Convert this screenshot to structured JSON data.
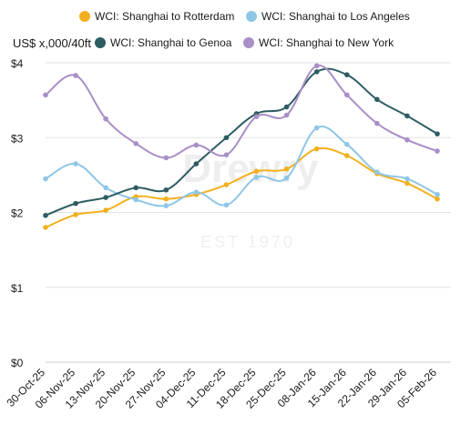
{
  "watermark": {
    "brand": "Drewry",
    "est": "EST 1970"
  },
  "chart_data": {
    "type": "line",
    "ylabel": "US$ x,000/40ft",
    "ylim": [
      0,
      4
    ],
    "yticks": [
      0,
      1,
      2,
      3,
      4
    ],
    "ytick_labels": [
      "$0",
      "$1",
      "$2",
      "$3",
      "$4"
    ],
    "grid": true,
    "legend": "top",
    "categories": [
      "30-Oct-25",
      "06-Nov-25",
      "13-Nov-25",
      "20-Nov-25",
      "27-Nov-25",
      "04-Dec-25",
      "11-Dec-25",
      "18-Dec-25",
      "25-Dec-25",
      "08-Jan-26",
      "15-Jan-26",
      "22-Jan-26",
      "29-Jan-26",
      "05-Feb-26"
    ],
    "series": [
      {
        "name": "WCI: Shanghai to Rotterdam",
        "color": "#f2b01e",
        "values": [
          1.8,
          1.97,
          2.03,
          2.21,
          2.18,
          2.24,
          2.37,
          2.55,
          2.58,
          2.85,
          2.76,
          2.52,
          2.39,
          2.18
        ]
      },
      {
        "name": "WCI: Shanghai to Los Angeles",
        "color": "#8ec6e6",
        "values": [
          2.45,
          2.65,
          2.33,
          2.17,
          2.09,
          2.27,
          2.1,
          2.47,
          2.46,
          3.13,
          2.91,
          2.54,
          2.45,
          2.24
        ]
      },
      {
        "name": "WCI: Shanghai to Genoa",
        "color": "#2d5c63",
        "values": [
          1.96,
          2.12,
          2.2,
          2.33,
          2.3,
          2.65,
          3.0,
          3.32,
          3.41,
          3.88,
          3.84,
          3.51,
          3.29,
          3.05
        ]
      },
      {
        "name": "WCI: Shanghai to New York",
        "color": "#a88fc7",
        "values": [
          3.57,
          3.83,
          3.25,
          2.92,
          2.73,
          2.9,
          2.77,
          3.28,
          3.3,
          3.96,
          3.57,
          3.19,
          2.97,
          2.82
        ]
      }
    ]
  }
}
